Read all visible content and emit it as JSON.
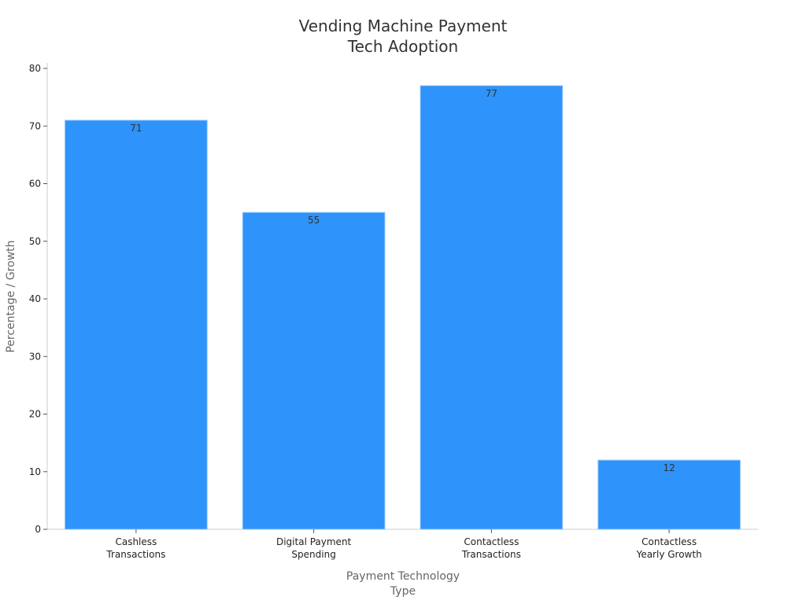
{
  "chart_data": {
    "type": "bar",
    "title": [
      "Vending Machine Payment",
      "Tech Adoption"
    ],
    "xlabel": [
      "Payment Technology",
      "Type"
    ],
    "ylabel": "Percentage / Growth",
    "categories": [
      [
        "Cashless",
        "Transactions"
      ],
      [
        "Digital Payment",
        "Spending"
      ],
      [
        "Contactless",
        "Transactions"
      ],
      [
        "Contactless",
        "Yearly Growth"
      ]
    ],
    "values": [
      71,
      55,
      77,
      12
    ],
    "data_labels": [
      "71",
      "55",
      "77",
      "12"
    ],
    "ylim": [
      0,
      80
    ],
    "yticks": [
      0,
      10,
      20,
      30,
      40,
      50,
      60,
      70,
      80
    ],
    "grid": false,
    "colors": {
      "bar": "#2e93fa",
      "bar_edge": "#8cc4fc",
      "axis": "#cccccc"
    }
  }
}
